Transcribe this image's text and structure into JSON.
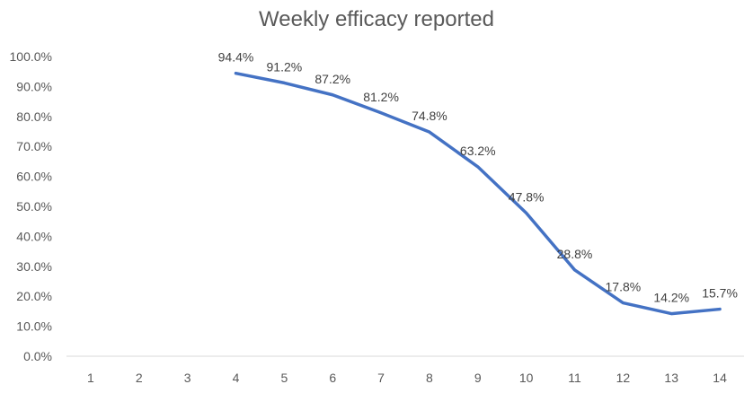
{
  "chart_data": {
    "type": "line",
    "title": "Weekly efficacy reported",
    "xlabel": "",
    "ylabel": "",
    "categories": [
      "1",
      "2",
      "3",
      "4",
      "5",
      "6",
      "7",
      "8",
      "9",
      "10",
      "11",
      "12",
      "13",
      "14"
    ],
    "series": [
      {
        "values": [
          null,
          null,
          null,
          94.4,
          91.2,
          87.2,
          81.2,
          74.8,
          63.2,
          47.8,
          28.8,
          17.8,
          14.2,
          15.7
        ],
        "labels": [
          "",
          "",
          "",
          "94.4%",
          "91.2%",
          "87.2%",
          "81.2%",
          "74.8%",
          "63.2%",
          "47.8%",
          "28.8%",
          "17.8%",
          "14.2%",
          "15.7%"
        ],
        "color": "#4472C4"
      }
    ],
    "ylim": [
      0,
      100
    ],
    "yticks": [
      "0.0%",
      "10.0%",
      "20.0%",
      "30.0%",
      "40.0%",
      "50.0%",
      "60.0%",
      "70.0%",
      "80.0%",
      "90.0%",
      "100.0%"
    ],
    "grid": false,
    "legend": "none"
  }
}
